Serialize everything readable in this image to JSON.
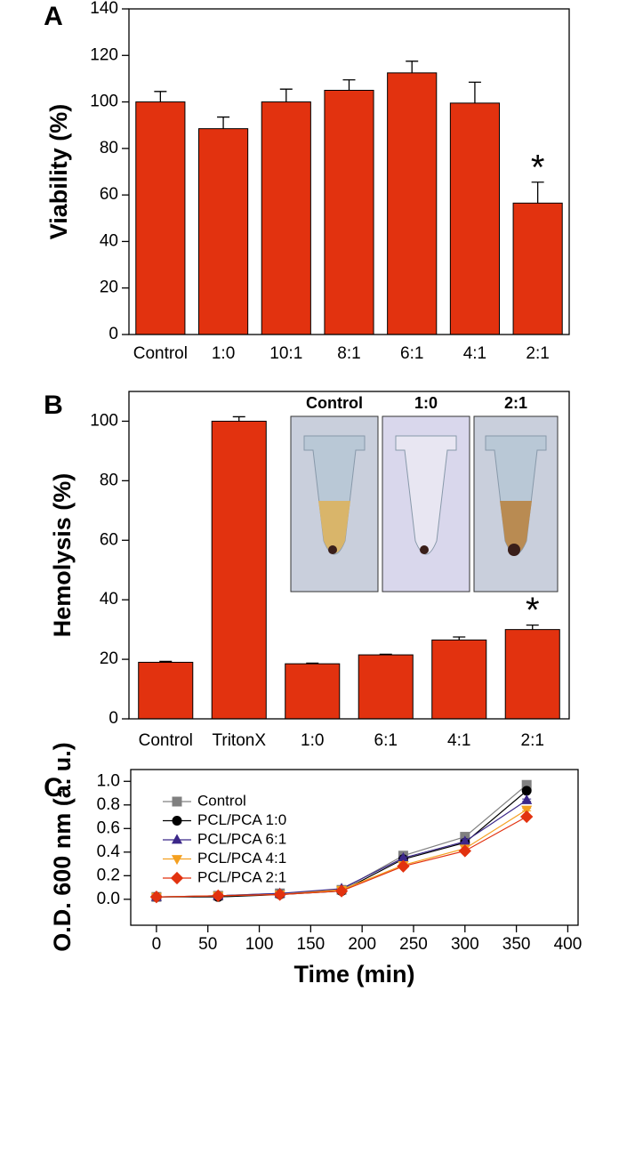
{
  "chart_data": [
    {
      "type": "bar",
      "panel": "A",
      "ylabel": "Viability (%)",
      "color": "#e2320f",
      "categories": [
        "Control",
        "1:0",
        "10:1",
        "8:1",
        "6:1",
        "4:1",
        "2:1"
      ],
      "values": [
        100,
        88.5,
        100,
        105,
        112.5,
        99.5,
        56.5
      ],
      "errors": [
        4.5,
        5,
        5.5,
        4.5,
        5,
        9,
        9
      ],
      "ylim": [
        0,
        140
      ],
      "yticks": [
        0,
        20,
        40,
        60,
        80,
        100,
        120,
        140
      ],
      "annotation": "*"
    },
    {
      "type": "bar",
      "panel": "B",
      "ylabel": "Hemolysis (%)",
      "color": "#e2320f",
      "categories": [
        "Control",
        "TritonX",
        "1:0",
        "6:1",
        "4:1",
        "2:1"
      ],
      "values": [
        19,
        100,
        18.5,
        21.5,
        26.5,
        30
      ],
      "errors": [
        0.3,
        1.5,
        0.2,
        0.2,
        1,
        1.5
      ],
      "ylim": [
        0,
        110
      ],
      "yticks": [
        0,
        20,
        40,
        60,
        80,
        100
      ],
      "annotation": "*",
      "inset_labels": [
        "Control",
        "1:0",
        "2:1"
      ]
    },
    {
      "type": "line",
      "panel": "C",
      "ylabel": "O.D. 600 nm (a. u.)",
      "xlabel": "Time (min)",
      "x": [
        0,
        60,
        120,
        180,
        240,
        300,
        360
      ],
      "xlim": [
        -25,
        410
      ],
      "xticks": [
        0,
        50,
        100,
        150,
        200,
        250,
        300,
        350,
        400
      ],
      "ylim": [
        -0.22,
        1.1
      ],
      "yticks": [
        {
          "value": 0,
          "label": "0.0"
        },
        0.2,
        0.4,
        0.6,
        0.8,
        {
          "value": 1,
          "label": "1.0"
        }
      ],
      "legend": "upper left",
      "series": [
        {
          "name": "Control",
          "color": "#808080",
          "marker": "square",
          "values": [
            0.02,
            0.03,
            0.05,
            0.08,
            0.37,
            0.53,
            0.97
          ],
          "errors": [
            0.01,
            0.01,
            0.01,
            0.01,
            0.01,
            0.02,
            0.01
          ]
        },
        {
          "name": "PCL/PCA 1:0",
          "color": "#000000",
          "marker": "circle",
          "values": [
            0.02,
            0.02,
            0.04,
            0.07,
            0.34,
            0.48,
            0.92
          ],
          "errors": [
            0.01,
            0.02,
            0.01,
            0.01,
            0.01,
            0.02,
            0.01
          ]
        },
        {
          "name": "PCL/PCA 6:1",
          "color": "#3b2789",
          "marker": "triangle",
          "values": [
            0.02,
            0.03,
            0.05,
            0.09,
            0.35,
            0.49,
            0.84
          ],
          "errors": [
            0.01,
            0.01,
            0.01,
            0.01,
            0.01,
            0.02,
            0.01
          ]
        },
        {
          "name": "PCL/PCA 4:1",
          "color": "#f4a020",
          "marker": "triangle-down",
          "values": [
            0.02,
            0.03,
            0.04,
            0.08,
            0.29,
            0.43,
            0.76
          ],
          "errors": [
            0.01,
            0.01,
            0.01,
            0.01,
            0.01,
            0.02,
            0.01
          ]
        },
        {
          "name": "PCL/PCA 2:1",
          "color": "#e2320f",
          "marker": "diamond",
          "values": [
            0.02,
            0.03,
            0.04,
            0.07,
            0.28,
            0.41,
            0.7
          ],
          "errors": [
            0.01,
            0.01,
            0.01,
            0.01,
            0.01,
            0.01,
            0.01
          ]
        }
      ]
    }
  ]
}
